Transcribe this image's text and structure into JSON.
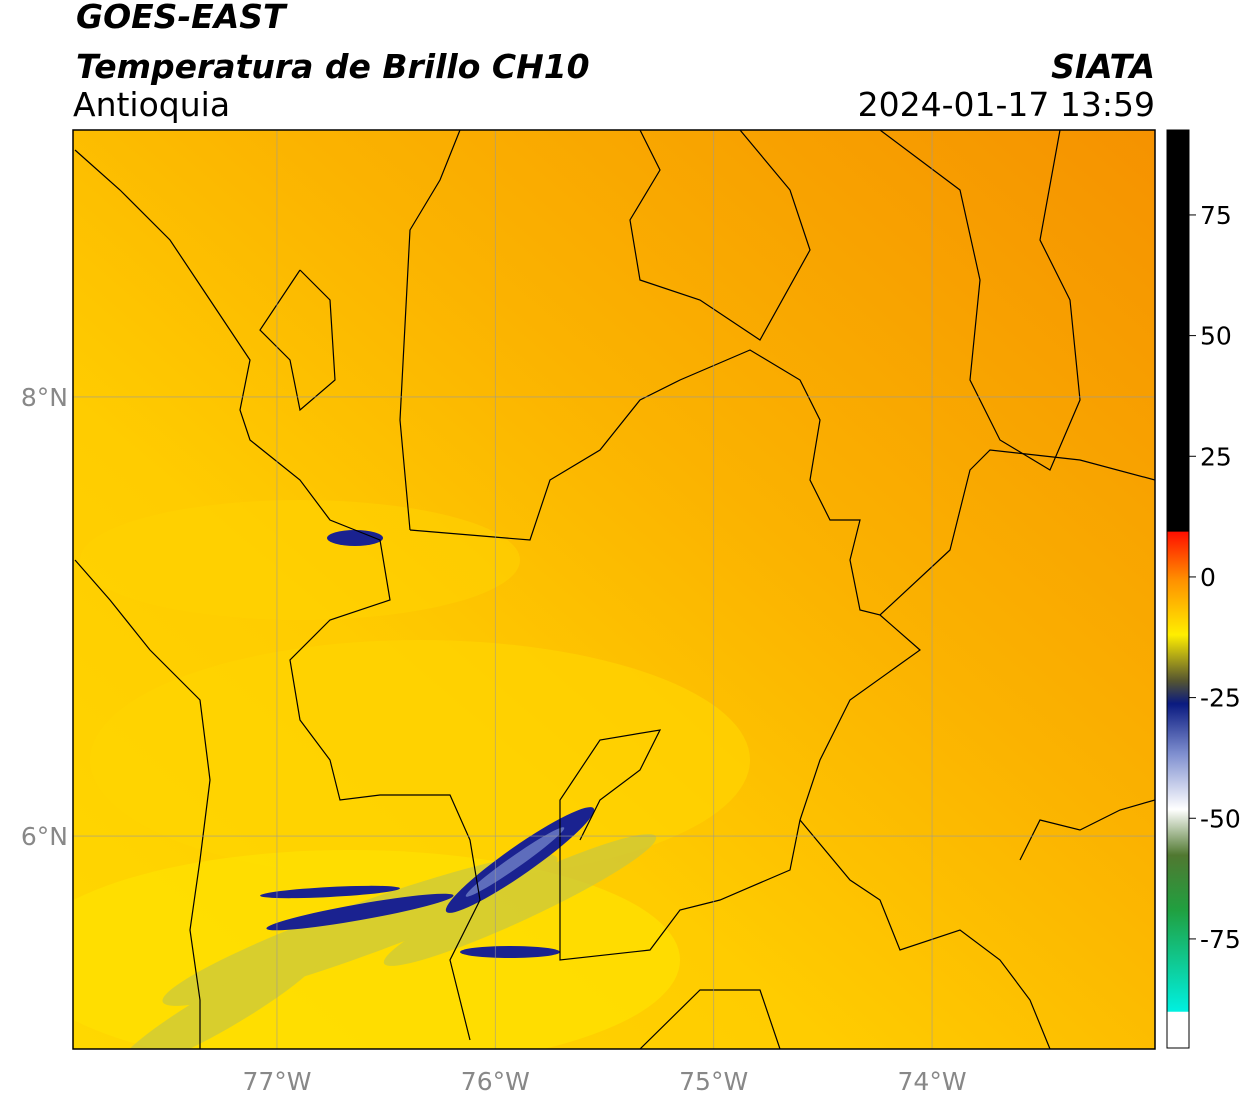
{
  "header": {
    "title": "GOES-EAST",
    "subtitle": "Temperatura de Brillo CH10",
    "region": "Antioquia",
    "source": "SIATA",
    "datetime": "2024-01-17 13:59"
  },
  "map": {
    "lon_range": [
      -77.934,
      -72.979
    ],
    "lat_range": [
      5.03,
      9.216
    ],
    "lon_ticks": [
      {
        "value": -77,
        "label": "77°W"
      },
      {
        "value": -76,
        "label": "76°W"
      },
      {
        "value": -75,
        "label": "75°W"
      },
      {
        "value": -74,
        "label": "74°W"
      }
    ],
    "lat_ticks": [
      {
        "value": 8,
        "label": "8°N"
      },
      {
        "value": 6,
        "label": "6°N"
      }
    ]
  },
  "colorbar": {
    "range": [
      -97.6,
      92.6
    ],
    "ticks": [
      75,
      50,
      25,
      0,
      -25,
      -50,
      -75
    ]
  }
}
